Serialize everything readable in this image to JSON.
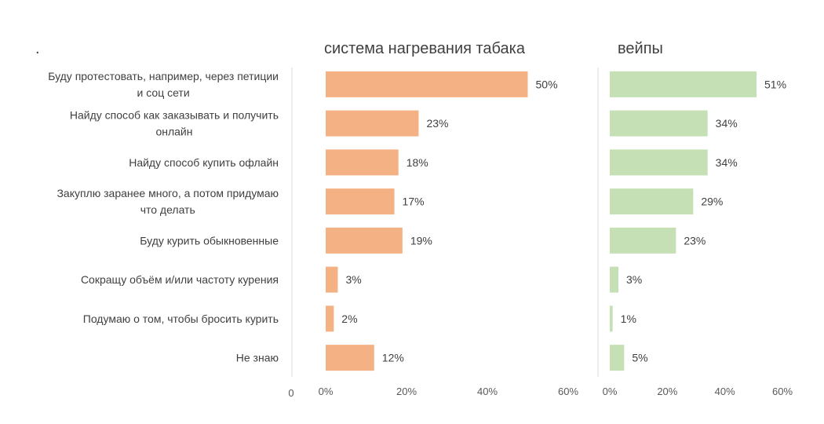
{
  "chart_data": {
    "type": "bar",
    "orientation": "horizontal",
    "title": ".",
    "categories": [
      [
        "Буду протестовать, например, через петиции",
        "и соц сети"
      ],
      [
        "Найду способ как заказывать и получить",
        "онлайн"
      ],
      [
        "Найду способ купить офлайн"
      ],
      [
        "Закуплю заранее много, а потом придумаю",
        "что делать"
      ],
      [
        "Буду курить обыкновенные"
      ],
      [
        "Сокращу объём и/или частоту курения"
      ],
      [
        "Подумаю о том, чтобы бросить курить"
      ],
      [
        "Не знаю"
      ]
    ],
    "label_axis_tick": "0",
    "series": [
      {
        "name": "система нагревания табака",
        "color": "#f4b183",
        "values": [
          50,
          23,
          18,
          17,
          19,
          3,
          2,
          12
        ],
        "labels": [
          "50%",
          "23%",
          "18%",
          "17%",
          "19%",
          "3%",
          "2%",
          "12%"
        ],
        "xlim": [
          0,
          60
        ],
        "xticks": [
          "0%",
          "20%",
          "40%",
          "60%"
        ]
      },
      {
        "name": "вейпы",
        "color": "#c5e0b4",
        "values": [
          51,
          34,
          34,
          29,
          23,
          3,
          1,
          5
        ],
        "labels": [
          "51%",
          "34%",
          "34%",
          "29%",
          "23%",
          "3%",
          "1%",
          "5%"
        ],
        "xlim": [
          0,
          60
        ],
        "xticks": [
          "0%",
          "20%",
          "40%",
          "60%"
        ]
      }
    ],
    "grid": false,
    "legend": "none"
  }
}
